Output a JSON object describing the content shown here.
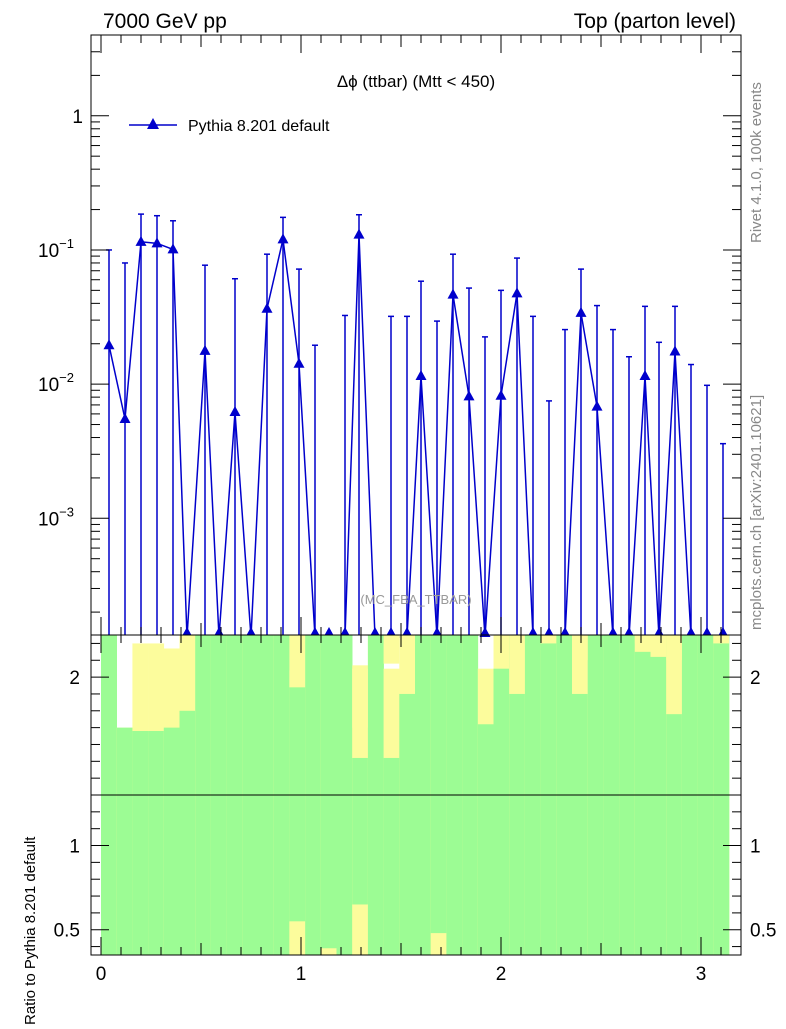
{
  "header": {
    "left": "7000 GeV pp",
    "right": "Top (parton level)"
  },
  "side": {
    "rivet": "Rivet 4.1.0,  100k events",
    "mcplots": "mcplots.cern.ch [arXiv:2401.10621]"
  },
  "colors": {
    "series": "#0000cc",
    "band_green": "#9cfc94",
    "band_yellow": "#fcfc9c"
  },
  "chart_data": [
    {
      "type": "line",
      "title": "Δϕ (ttbar) (Mtt < 450)",
      "watermark": "(MC_FBA_TTBAR)",
      "yscale": "log",
      "xlim": [
        -0.05,
        3.2
      ],
      "ylim": [
        0.000135,
        4.0
      ],
      "yticks": [
        {
          "value": 1,
          "label": "1",
          "exp": ""
        },
        {
          "value": 0.1,
          "label": "10",
          "exp": "−1"
        },
        {
          "value": 0.01,
          "label": "10",
          "exp": "−2"
        },
        {
          "value": 0.001,
          "label": "10",
          "exp": "−3"
        }
      ],
      "legend": {
        "label": "Pythia 8.201 default",
        "position": "top-left"
      },
      "series": [
        {
          "name": "Pythia 8.201 default",
          "x": [
            0.04,
            0.12,
            0.2,
            0.28,
            0.36,
            0.52,
            0.67,
            0.83,
            0.91,
            0.99,
            1.29,
            1.6,
            1.76,
            1.84,
            2.0,
            2.08,
            2.4,
            2.48,
            2.72,
            2.87
          ],
          "y": [
            0.0195,
            0.0055,
            0.115,
            0.112,
            0.101,
            0.0177,
            0.0062,
            0.0365,
            0.12,
            0.0142,
            0.13,
            0.0115,
            0.0465,
            0.0081,
            0.0082,
            0.0475,
            0.034,
            0.0068,
            0.0115,
            0.0175
          ],
          "y_up": [
            0.1,
            0.08,
            0.185,
            0.18,
            0.165,
            0.077,
            0.061,
            0.093,
            0.175,
            0.072,
            0.183,
            0.0585,
            0.093,
            0.052,
            0.05,
            0.087,
            0.072,
            0.0385,
            0.038,
            0.038
          ]
        }
      ],
      "zero_bins": {
        "x": [
          0.43,
          0.59,
          0.75,
          1.07,
          1.14,
          1.22,
          1.37,
          1.45,
          1.53,
          1.68,
          1.92,
          2.16,
          2.24,
          2.32,
          2.56,
          2.64,
          2.79,
          2.95,
          3.03,
          3.11
        ],
        "y_up": [
          0,
          0,
          0,
          0.0195,
          0,
          0.0325,
          0,
          0.032,
          0.032,
          0.0295,
          0.0225,
          0.032,
          0.0075,
          0.0255,
          0.0255,
          0.016,
          0.0205,
          0.014,
          0.0098,
          0.0036
        ]
      }
    },
    {
      "type": "ratio_band",
      "ylabel": "Ratio to Pythia 8.201 default",
      "xlim": [
        -0.05,
        3.2
      ],
      "ylim": [
        0.35,
        2.25
      ],
      "yticks": [
        0.5,
        1,
        2
      ],
      "xticks": [
        0,
        1,
        2,
        3
      ],
      "bins": [
        0,
        0.0785,
        0.157,
        0.2355,
        0.314,
        0.3925,
        0.471,
        0.5495,
        0.628,
        0.7065,
        0.785,
        0.8635,
        0.942,
        1.0205,
        1.099,
        1.1775,
        1.256,
        1.3345,
        1.413,
        1.4915,
        1.57,
        1.6485,
        1.727,
        1.8055,
        1.884,
        1.9625,
        2.041,
        2.1195,
        2.198,
        2.2765,
        2.355,
        2.4335,
        2.512,
        2.5905,
        2.669,
        2.7475,
        2.826,
        2.9045,
        2.983,
        3.0615,
        3.14
      ],
      "green_low": [
        0.35,
        0.35,
        0.35,
        0.35,
        0.35,
        0.35,
        0.35,
        0.35,
        0.35,
        0.35,
        0.35,
        0.35,
        0.35,
        0.35,
        0.35,
        0.35,
        0.35,
        0.35,
        0.35,
        0.35,
        0.35,
        0.35,
        0.35,
        0.35,
        0.35,
        0.35,
        0.35,
        0.35,
        0.35,
        0.35,
        0.35,
        0.35,
        0.35,
        0.35,
        0.35,
        0.35,
        0.35,
        0.35,
        0.35,
        0.35
      ],
      "green_high": [
        2.25,
        1.7,
        1.68,
        1.68,
        1.7,
        1.8,
        2.25,
        2.25,
        2.25,
        2.25,
        2.25,
        2.25,
        1.94,
        2.25,
        2.25,
        2.25,
        1.7,
        2.25,
        1.52,
        1.9,
        2.25,
        2.25,
        2.25,
        2.25,
        1.72,
        2.05,
        2.25,
        2.25,
        2.25,
        2.25,
        1.9,
        2.25,
        2.25,
        2.25,
        2.2,
        2.25,
        2.1,
        2.25,
        2.25,
        2.25
      ],
      "yellow_low": [
        0.35,
        0.35,
        0.37,
        0.37,
        0.35,
        0.35,
        0.35,
        0.35,
        0.35,
        0.35,
        0.35,
        0.35,
        0.35,
        0.35,
        0.35,
        0.35,
        0.35,
        0.35,
        0.35,
        0.35,
        0.35,
        0.35,
        0.35,
        0.35,
        0.35,
        0.35,
        0.35,
        0.35,
        0.35,
        0.35,
        0.35,
        0.35,
        0.35,
        0.35,
        0.35,
        0.35,
        0.35,
        0.35,
        0.35,
        0.35
      ],
      "yellow_high": [
        2.25,
        1.7,
        2.2,
        2.2,
        2.17,
        2.25,
        2.25,
        2.25,
        2.25,
        2.25,
        2.25,
        2.25,
        2.04,
        2.25,
        2.25,
        2.25,
        2.07,
        2.25,
        2.05,
        2.25,
        2.25,
        2.25,
        2.25,
        2.25,
        2.05,
        2.25,
        2.25,
        2.25,
        2.25,
        2.25,
        2.25,
        2.25,
        2.25,
        2.25,
        2.25,
        2.25,
        2.25,
        2.25,
        2.25,
        2.25
      ],
      "yellow_extra": [
        {
          "x0": 0.942,
          "x1": 1.0205,
          "lo": 0.35,
          "hi": 0.55
        },
        {
          "x0": 1.099,
          "x1": 1.1775,
          "lo": 0.35,
          "hi": 0.39
        },
        {
          "x0": 1.256,
          "x1": 1.3345,
          "lo": 0.35,
          "hi": 0.65
        },
        {
          "x0": 1.6485,
          "x1": 1.727,
          "lo": 0.35,
          "hi": 0.48
        },
        {
          "x0": 1.413,
          "x1": 1.4915,
          "lo": 2.08,
          "hi": 2.25
        },
        {
          "x0": 2.041,
          "x1": 2.1195,
          "lo": 1.9,
          "hi": 2.25
        },
        {
          "x0": 2.198,
          "x1": 2.2765,
          "lo": 2.2,
          "hi": 2.25
        },
        {
          "x0": 2.355,
          "x1": 2.4335,
          "lo": 2.1,
          "hi": 2.25
        },
        {
          "x0": 2.669,
          "x1": 2.7475,
          "lo": 2.15,
          "hi": 2.25
        },
        {
          "x0": 2.7475,
          "x1": 2.826,
          "lo": 2.12,
          "hi": 2.25
        },
        {
          "x0": 2.826,
          "x1": 2.9045,
          "lo": 1.78,
          "hi": 2.25
        },
        {
          "x0": 3.0615,
          "x1": 3.14,
          "lo": 2.2,
          "hi": 2.25
        },
        {
          "x0": 0.942,
          "x1": 1.0205,
          "lo": 1.94,
          "hi": 2.25
        },
        {
          "x0": 1.256,
          "x1": 1.3345,
          "lo": 1.52,
          "hi": 2.05
        }
      ]
    }
  ]
}
